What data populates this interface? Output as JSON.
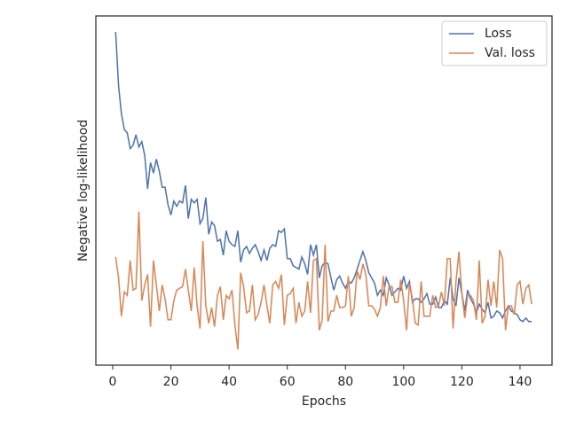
{
  "chart_data": {
    "type": "line",
    "xlabel": "Epochs",
    "ylabel": "Negative log-likelihood",
    "x": [
      1,
      2,
      3,
      4,
      5,
      6,
      7,
      8,
      9,
      10,
      11,
      12,
      13,
      14,
      15,
      16,
      17,
      18,
      19,
      20,
      21,
      22,
      23,
      24,
      25,
      26,
      27,
      28,
      29,
      30,
      31,
      32,
      33,
      34,
      35,
      36,
      37,
      38,
      39,
      40,
      41,
      42,
      43,
      44,
      45,
      46,
      47,
      48,
      49,
      50,
      51,
      52,
      53,
      54,
      55,
      56,
      57,
      58,
      59,
      60,
      61,
      62,
      63,
      64,
      65,
      66,
      67,
      68,
      69,
      70,
      71,
      72,
      73,
      74,
      75,
      76,
      77,
      78,
      79,
      80,
      81,
      82,
      83,
      84,
      85,
      86,
      87,
      88,
      89,
      90,
      91,
      92,
      93,
      94,
      95,
      96,
      97,
      98,
      99,
      100,
      101,
      102,
      103,
      104,
      105,
      106,
      107,
      108,
      109,
      110,
      111,
      112,
      113,
      114,
      115,
      116,
      117,
      118,
      119,
      120,
      121,
      122,
      123,
      124,
      125,
      126,
      127,
      128,
      129,
      130,
      131,
      132,
      133,
      134,
      135,
      136,
      137,
      138,
      139,
      140,
      141,
      142,
      143,
      144
    ],
    "series": [
      {
        "name": "Loss",
        "color": "#4c72b0",
        "values": [
          0.954,
          0.8,
          0.72,
          0.675,
          0.665,
          0.62,
          0.63,
          0.66,
          0.625,
          0.64,
          0.6,
          0.505,
          0.58,
          0.55,
          0.59,
          0.555,
          0.51,
          0.51,
          0.46,
          0.43,
          0.47,
          0.455,
          0.47,
          0.465,
          0.515,
          0.42,
          0.475,
          0.465,
          0.475,
          0.405,
          0.42,
          0.48,
          0.375,
          0.41,
          0.4,
          0.355,
          0.36,
          0.315,
          0.385,
          0.355,
          0.345,
          0.34,
          0.385,
          0.295,
          0.33,
          0.34,
          0.32,
          0.335,
          0.345,
          0.325,
          0.3,
          0.33,
          0.3,
          0.335,
          0.345,
          0.34,
          0.385,
          0.38,
          0.39,
          0.305,
          0.305,
          0.285,
          0.28,
          0.275,
          0.31,
          0.29,
          0.26,
          0.345,
          0.315,
          0.345,
          0.25,
          0.285,
          0.295,
          0.29,
          0.25,
          0.215,
          0.245,
          0.255,
          0.235,
          0.22,
          0.24,
          0.235,
          0.25,
          0.275,
          0.3,
          0.325,
          0.3,
          0.265,
          0.25,
          0.235,
          0.2,
          0.215,
          0.2,
          0.25,
          0.23,
          0.2,
          0.21,
          0.22,
          0.215,
          0.255,
          0.22,
          0.24,
          0.18,
          0.19,
          0.19,
          0.18,
          0.19,
          0.205,
          0.175,
          0.175,
          0.195,
          0.165,
          0.165,
          0.185,
          0.175,
          0.25,
          0.19,
          0.17,
          0.25,
          0.205,
          0.155,
          0.215,
          0.19,
          0.175,
          0.15,
          0.175,
          0.16,
          0.15,
          0.18,
          0.135,
          0.14,
          0.155,
          0.15,
          0.135,
          0.155,
          0.17,
          0.155,
          0.15,
          0.145,
          0.13,
          0.125,
          0.135,
          0.125,
          0.125
        ]
      },
      {
        "name": "Val. loss",
        "color": "#dd8452",
        "values": [
          0.31,
          0.25,
          0.14,
          0.21,
          0.2,
          0.3,
          0.215,
          0.22,
          0.44,
          0.185,
          0.23,
          0.26,
          0.11,
          0.3,
          0.23,
          0.155,
          0.23,
          0.19,
          0.13,
          0.13,
          0.185,
          0.215,
          0.22,
          0.225,
          0.275,
          0.215,
          0.155,
          0.28,
          0.17,
          0.105,
          0.355,
          0.17,
          0.12,
          0.165,
          0.11,
          0.2,
          0.225,
          0.13,
          0.2,
          0.19,
          0.215,
          0.115,
          0.045,
          0.265,
          0.225,
          0.15,
          0.155,
          0.23,
          0.13,
          0.145,
          0.18,
          0.23,
          0.17,
          0.12,
          0.23,
          0.24,
          0.22,
          0.26,
          0.115,
          0.2,
          0.205,
          0.22,
          0.12,
          0.18,
          0.14,
          0.155,
          0.24,
          0.15,
          0.3,
          0.305,
          0.1,
          0.13,
          0.345,
          0.125,
          0.155,
          0.155,
          0.2,
          0.165,
          0.165,
          0.17,
          0.255,
          0.14,
          0.165,
          0.27,
          0.245,
          0.29,
          0.26,
          0.17,
          0.17,
          0.16,
          0.14,
          0.165,
          0.255,
          0.17,
          0.225,
          0.225,
          0.18,
          0.18,
          0.245,
          0.185,
          0.1,
          0.235,
          0.19,
          0.12,
          0.115,
          0.24,
          0.14,
          0.14,
          0.14,
          0.2,
          0.165,
          0.17,
          0.21,
          0.17,
          0.305,
          0.305,
          0.105,
          0.24,
          0.325,
          0.205,
          0.135,
          0.2,
          0.2,
          0.185,
          0.13,
          0.3,
          0.12,
          0.14,
          0.245,
          0.17,
          0.24,
          0.165,
          0.33,
          0.305,
          0.1,
          0.17,
          0.17,
          0.145,
          0.23,
          0.24,
          0.175,
          0.22,
          0.23,
          0.175
        ]
      }
    ],
    "xlim": [
      -5.8,
      151
    ],
    "ylim": [
      0,
      1
    ],
    "xticks": [
      0,
      20,
      40,
      60,
      80,
      100,
      120,
      140
    ],
    "legend": "upper right"
  }
}
